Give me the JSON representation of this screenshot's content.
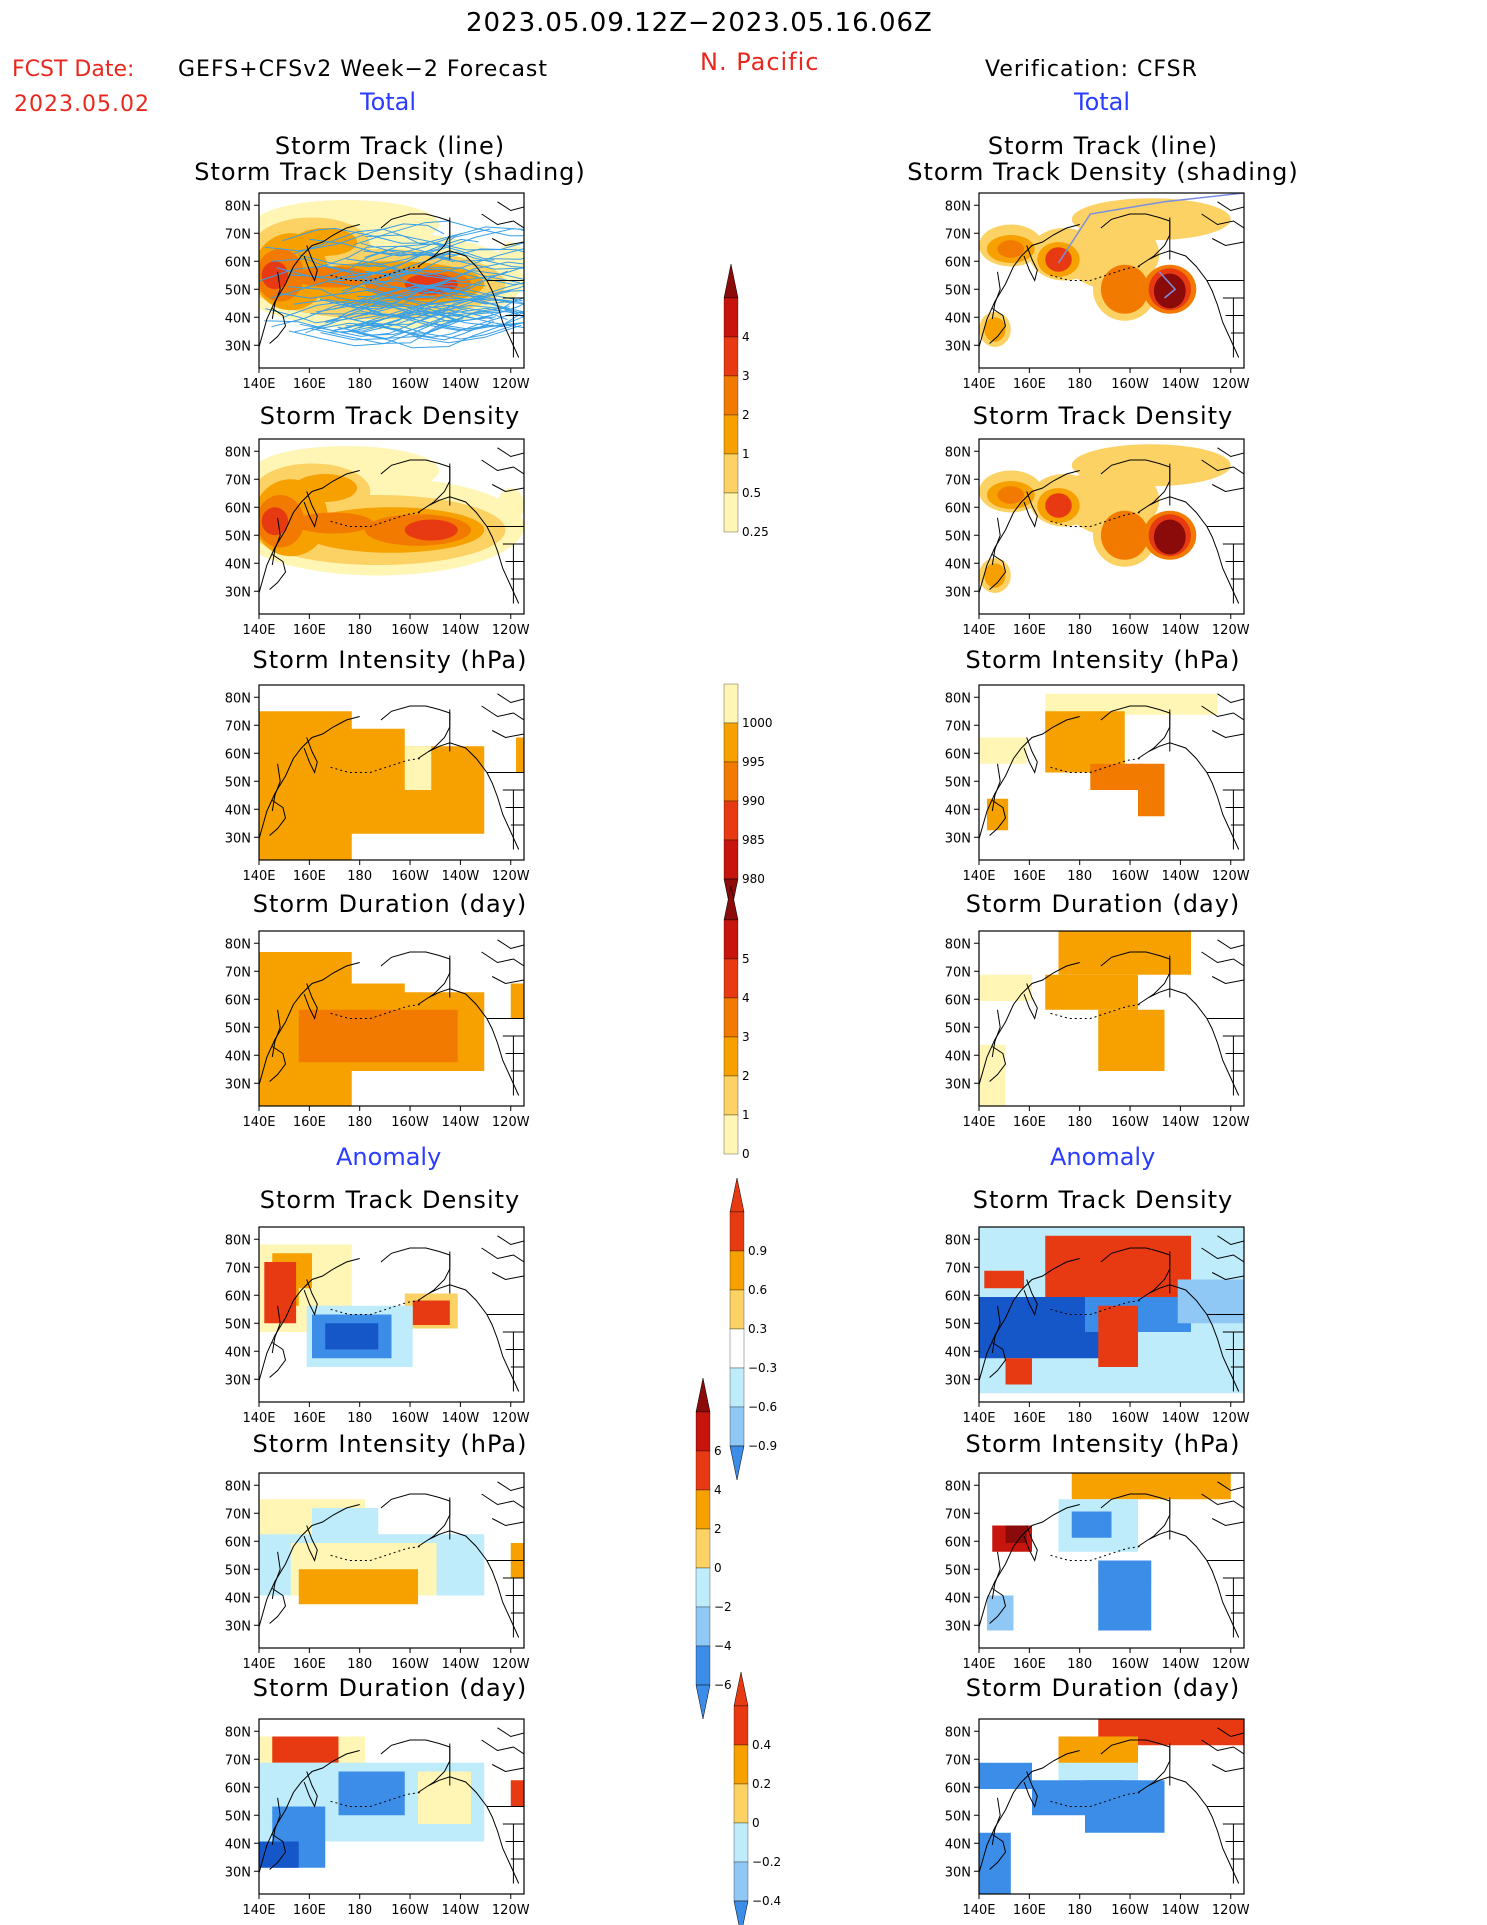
{
  "header": {
    "period": "2023.05.09.12Z−2023.05.16.06Z",
    "region": "N. Pacific",
    "fcst_label": "FCST Date:",
    "fcst_model": "GEFS+CFSv2 Week−2 Forecast",
    "fcst_date": "2023.05.02",
    "verif": "Verification: CFSR"
  },
  "sections": {
    "total": "Total",
    "anomaly": "Anomaly"
  },
  "panel_titles": {
    "track_line": "Storm Track (line)",
    "track_shading": "Storm Track Density (shading)",
    "density": "Storm Track Density",
    "intensity": "Storm Intensity (hPa)",
    "duration": "Storm Duration (day)"
  },
  "axes": {
    "lat": [
      "80N",
      "70N",
      "60N",
      "50N",
      "40N",
      "30N"
    ],
    "lon": [
      "140E",
      "160E",
      "180",
      "160W",
      "140W",
      "120W"
    ]
  },
  "colorbars": {
    "density_total": [
      "4",
      "3",
      "2",
      "1",
      "0.5",
      "0.25"
    ],
    "intensity_total": [
      "1000",
      "995",
      "990",
      "985",
      "980"
    ],
    "duration_total": [
      "5",
      "4",
      "3",
      "2",
      "1",
      "0"
    ],
    "density_anom": [
      "0.9",
      "0.6",
      "0.3",
      "−0.3",
      "−0.6",
      "−0.9"
    ],
    "intensity_anom": [
      "6",
      "4",
      "2",
      "0",
      "−2",
      "−4",
      "−6"
    ],
    "duration_anom": [
      "0.4",
      "0.2",
      "0",
      "−0.2",
      "−0.4"
    ]
  },
  "colors": {
    "pos1": "#fff5b4",
    "pos2": "#fbd263",
    "pos3": "#f6a100",
    "pos4": "#f27a00",
    "pos5": "#e83a12",
    "pos6": "#c7150e",
    "pos7": "#8b0a0a",
    "neg1": "#bfecfa",
    "neg2": "#8fc8f5",
    "neg3": "#3c8de8",
    "neg4": "#1556c8",
    "track": "#3aa0e6"
  }
}
